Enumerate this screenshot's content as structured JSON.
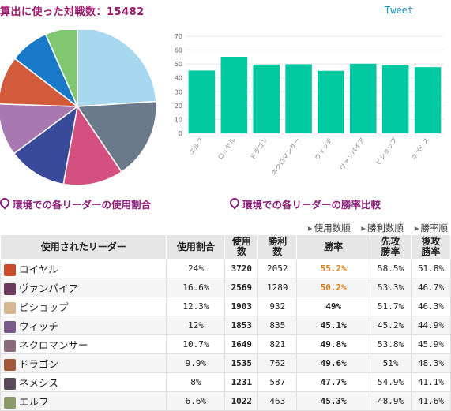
{
  "header": {
    "title": "算出に使った対戦数：15482",
    "tweet_label": "Tweet"
  },
  "captions": {
    "usage": "環境での各リーダーの使用割合",
    "winrate": "環境での各リーダーの勝率比較"
  },
  "sort_links": [
    "使用数順",
    "勝利数順",
    "勝率順"
  ],
  "table": {
    "headers": [
      "使用されたリーダー",
      "使用割合",
      "使用\n数",
      "勝利\n数",
      "勝率",
      "先攻\n勝率",
      "後攻\n勝率"
    ],
    "rows": [
      {
        "leader": "ロイヤル",
        "share": "24%",
        "uses": "3720",
        "wins": "2052",
        "winrate": "55.2%",
        "first": "58.5%",
        "second": "51.8%",
        "highlight": true,
        "color": "#c84a2a"
      },
      {
        "leader": "ヴァンパイア",
        "share": "16.6%",
        "uses": "2569",
        "wins": "1289",
        "winrate": "50.2%",
        "first": "53.3%",
        "second": "46.7%",
        "highlight": true,
        "color": "#6a3a5a"
      },
      {
        "leader": "ビショップ",
        "share": "12.3%",
        "uses": "1903",
        "wins": "932",
        "winrate": "49%",
        "first": "51.7%",
        "second": "46.3%",
        "highlight": false,
        "color": "#d8b890"
      },
      {
        "leader": "ウィッチ",
        "share": "12%",
        "uses": "1853",
        "wins": "835",
        "winrate": "45.1%",
        "first": "45.2%",
        "second": "44.9%",
        "highlight": false,
        "color": "#7a5a8a"
      },
      {
        "leader": "ネクロマンサー",
        "share": "10.7%",
        "uses": "1649",
        "wins": "821",
        "winrate": "49.8%",
        "first": "53.8%",
        "second": "45.9%",
        "highlight": false,
        "color": "#8a6a7a"
      },
      {
        "leader": "ドラゴン",
        "share": "9.9%",
        "uses": "1535",
        "wins": "762",
        "winrate": "49.6%",
        "first": "51%",
        "second": "48.3%",
        "highlight": false,
        "color": "#a05a3a"
      },
      {
        "leader": "ネメシス",
        "share": "8%",
        "uses": "1231",
        "wins": "587",
        "winrate": "47.7%",
        "first": "54.9%",
        "second": "41.1%",
        "highlight": false,
        "color": "#5a4a5a"
      },
      {
        "leader": "エルフ",
        "share": "6.6%",
        "uses": "1022",
        "wins": "463",
        "winrate": "45.3%",
        "first": "48.9%",
        "second": "41.6%",
        "highlight": false,
        "color": "#8a9a6a"
      }
    ]
  },
  "chart_data": [
    {
      "type": "pie",
      "categories": [
        "ロイヤル",
        "ヴァンパイア",
        "ビショップ",
        "ウィッチ",
        "ネクロマンサー",
        "ドラゴン",
        "ネメシス",
        "エルフ"
      ],
      "values": [
        24,
        16.6,
        12.3,
        12,
        10.7,
        9.9,
        8,
        6.6
      ],
      "colors": [
        "#a8d8f0",
        "#6a7a8a",
        "#d45080",
        "#3a4a9a",
        "#a878b0",
        "#d05a3a",
        "#1a78c8",
        "#80c870"
      ]
    },
    {
      "type": "bar",
      "categories": [
        "エルフ",
        "ロイヤル",
        "ドラゴン",
        "ネクロマンサー",
        "ウィッチ",
        "ヴァンパイア",
        "ビショップ",
        "ネメシス"
      ],
      "values": [
        45.3,
        55.2,
        49.6,
        49.8,
        45.1,
        50.2,
        49,
        47.7
      ],
      "ylim": [
        0,
        70
      ],
      "yticks": [
        0,
        10,
        20,
        30,
        40,
        50,
        60,
        70
      ],
      "grid": true,
      "color": "#00c8a0"
    }
  ]
}
